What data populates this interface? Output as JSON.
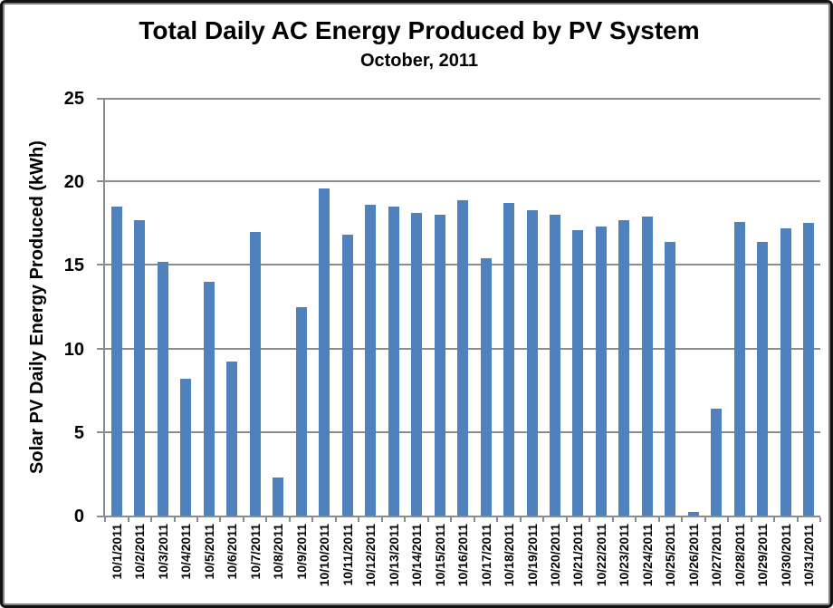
{
  "chart_data": {
    "type": "bar",
    "title": "Total Daily AC Energy Produced by PV System",
    "subtitle": "October, 2011",
    "xlabel": "",
    "ylabel": "Solar PV Daily Energy Produced (kWh)",
    "ylim": [
      0,
      25
    ],
    "yticks": [
      0,
      5,
      10,
      15,
      20,
      25
    ],
    "grid": true,
    "legend": false,
    "bar_color": "#4F81BD",
    "gridline_color": "#8C8C8C",
    "axis_color": "#8C8C8C",
    "categories": [
      "10/1/2011",
      "10/2/2011",
      "10/3/2011",
      "10/4/2011",
      "10/5/2011",
      "10/6/2011",
      "10/7/2011",
      "10/8/2011",
      "10/9/2011",
      "10/10/2011",
      "10/11/2011",
      "10/12/2011",
      "10/13/2011",
      "10/14/2011",
      "10/15/2011",
      "10/16/2011",
      "10/17/2011",
      "10/18/2011",
      "10/19/2011",
      "10/20/2011",
      "10/21/2011",
      "10/22/2011",
      "10/23/2011",
      "10/24/2011",
      "10/25/2011",
      "10/26/2011",
      "10/27/2011",
      "10/28/2011",
      "10/29/2011",
      "10/30/2011",
      "10/31/2011"
    ],
    "values": [
      18.5,
      17.7,
      15.2,
      8.2,
      14.0,
      9.2,
      17.0,
      2.3,
      12.5,
      19.6,
      16.8,
      18.6,
      18.5,
      18.1,
      18.0,
      18.9,
      15.4,
      18.7,
      18.3,
      18.0,
      17.1,
      17.3,
      17.7,
      17.9,
      16.4,
      0.2,
      6.4,
      17.6,
      16.4,
      17.2,
      17.5
    ]
  }
}
